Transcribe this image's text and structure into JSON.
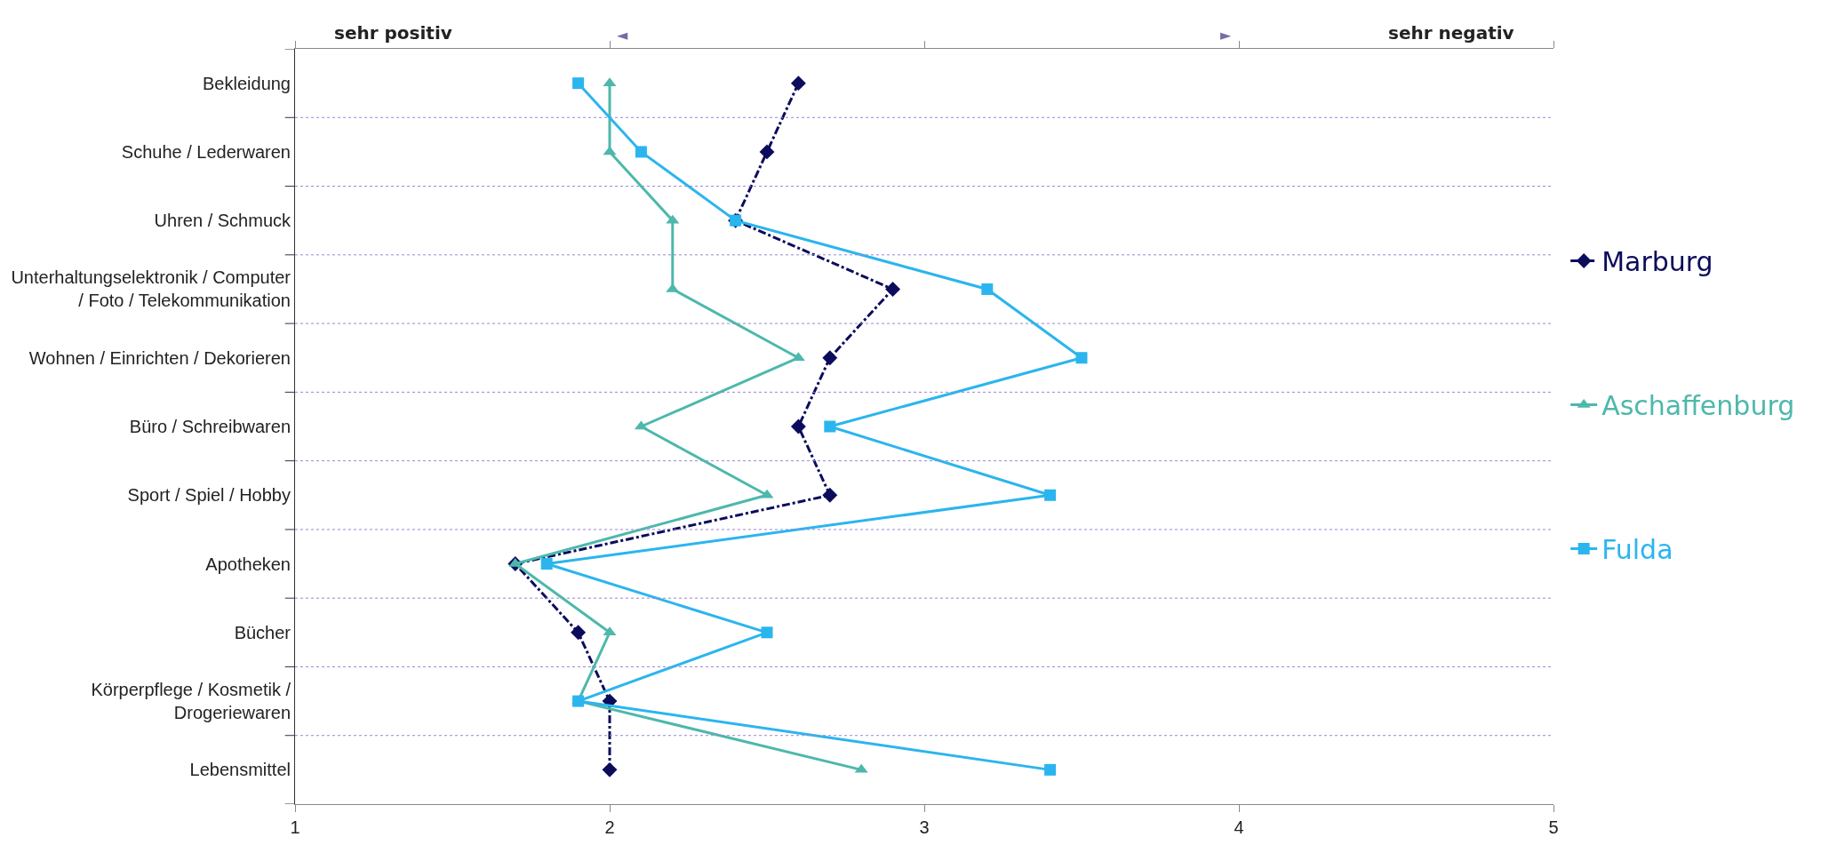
{
  "chart_data": {
    "type": "line",
    "orientation": "horizontal",
    "categories": [
      "Bekleidung",
      "Schuhe / Lederwaren",
      "Uhren / Schmuck",
      "Unterhaltungselektronik / Computer / Foto / Telekommunikation",
      "Wohnen / Einrichten / Dekorieren",
      "Büro / Schreibwaren",
      "Sport / Spiel / Hobby",
      "Apotheken",
      "Bücher",
      "Körperpflege / Kosmetik / Drogeriewaren",
      "Lebensmittel"
    ],
    "series": [
      {
        "name": "Marburg",
        "color": "#0c0c5c",
        "marker": "diamond",
        "line_style": "dashdot",
        "values": [
          2.6,
          2.5,
          2.4,
          2.9,
          2.7,
          2.6,
          2.7,
          1.7,
          1.9,
          2.0,
          2.0
        ]
      },
      {
        "name": "Aschaffenburg",
        "color": "#4db8ab",
        "marker": "triangle",
        "line_style": "solid",
        "values": [
          2.0,
          2.0,
          2.2,
          2.2,
          2.6,
          2.1,
          2.5,
          1.7,
          2.0,
          1.9,
          2.8
        ]
      },
      {
        "name": "Fulda",
        "color": "#2bb5ee",
        "marker": "square",
        "line_style": "solid",
        "values": [
          1.9,
          2.1,
          2.4,
          3.2,
          3.5,
          2.7,
          3.4,
          1.8,
          2.5,
          1.9,
          3.4
        ]
      }
    ],
    "xlim": [
      1,
      5
    ],
    "xticks": [
      1,
      2,
      3,
      4,
      5
    ],
    "grid": "y",
    "legend": "right",
    "annotations": [
      "sehr positiv",
      "◄",
      "►",
      "sehr negativ"
    ]
  }
}
